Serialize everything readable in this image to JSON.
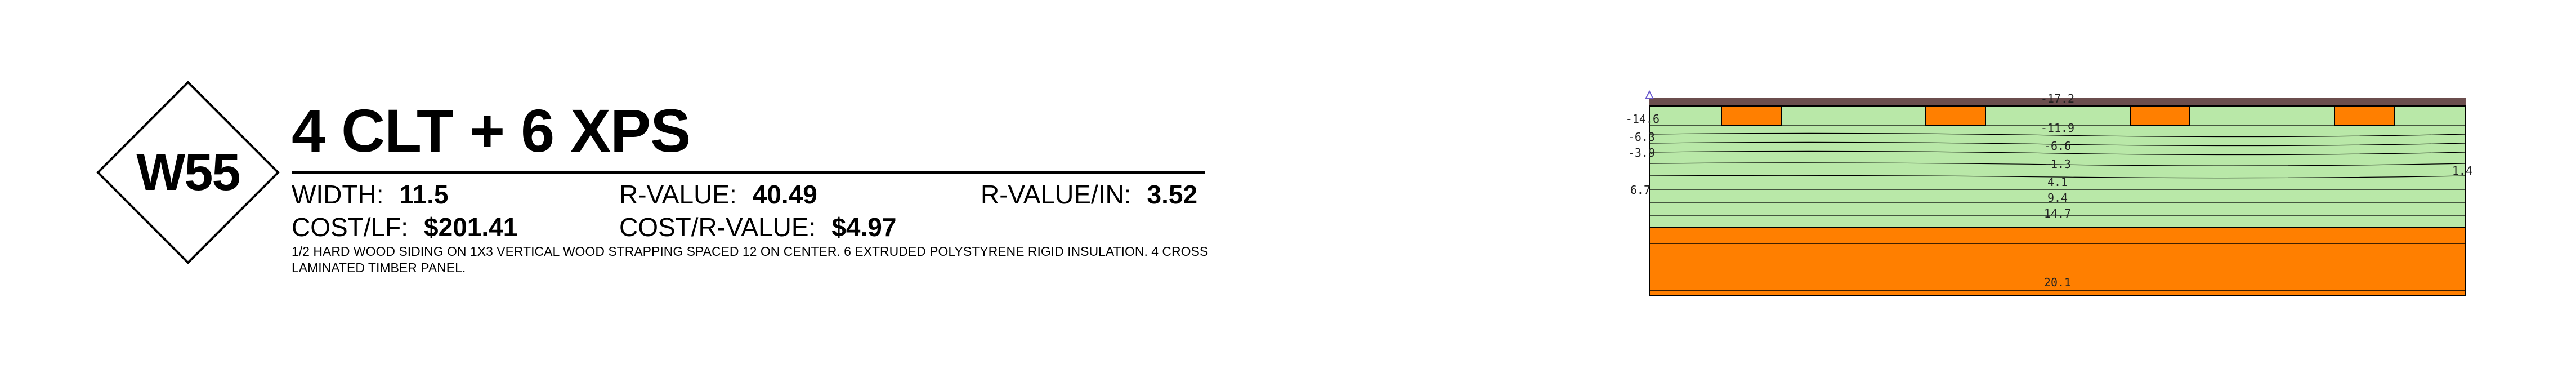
{
  "assembly": {
    "code": "W55",
    "title": "4 CLT + 6 XPS",
    "stats": [
      {
        "label": "WIDTH:",
        "value": "11.5"
      },
      {
        "label": "R-VALUE:",
        "value": "40.49"
      },
      {
        "label": "R-VALUE/IN:",
        "value": "3.52"
      },
      {
        "label": "COST/LF:",
        "value": "$201.41"
      },
      {
        "label": "COST/R-VALUE:",
        "value": "$4.97"
      }
    ],
    "description": "1/2 HARD WOOD SIDING ON 1X3 VERTICAL WOOD STRAPPING SPACED 12 ON CENTER. 6 EXTRUDED POLYSTYRENE RIGID INSULATION. 4 CROSS LAMINATED TIMBER PANEL."
  },
  "section": {
    "colors": {
      "siding": "#6b4e4e",
      "xps": "#b9e8a8",
      "clt": "#ff7f00",
      "lines": "#000000",
      "marker": "#6a5acd"
    },
    "temp_labels_center": [
      "-17.2",
      "-11.9",
      "-6.6",
      "-1.3",
      "4.1",
      "9.4",
      "14.7",
      "20.1"
    ],
    "temp_labels_left": [
      "-14.6",
      "-6.3",
      "-3.9",
      "6.7"
    ],
    "temp_label_right": "1.4"
  }
}
